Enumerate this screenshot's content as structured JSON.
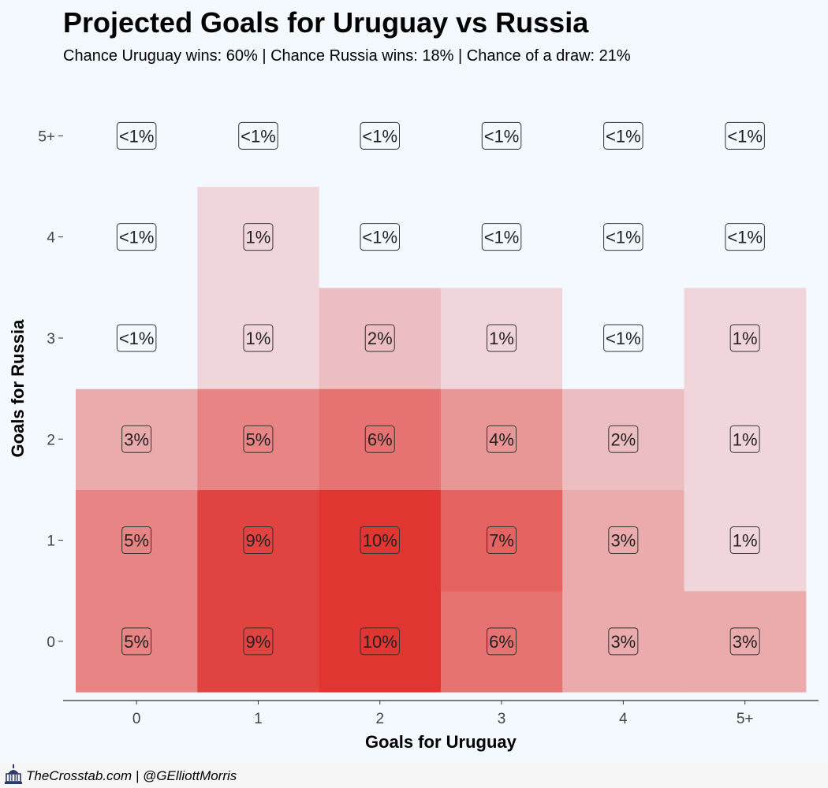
{
  "header": {
    "title": "Projected Goals for Uruguay vs Russia",
    "subtitle": "Chance Uruguay wins: 60% | Chance Russia wins: 18% | Chance of a draw: 21%"
  },
  "footer": {
    "credit": "TheCrosstab.com | @GElliottMorris",
    "logo_icon": "capitol-building-icon"
  },
  "chart_data": {
    "type": "heatmap",
    "xlabel": "Goals for Uruguay",
    "ylabel": "Goals for Russia",
    "x_categories": [
      "0",
      "1",
      "2",
      "3",
      "4",
      "5+"
    ],
    "y_categories": [
      "0",
      "1",
      "2",
      "3",
      "4",
      "5+"
    ],
    "cells": [
      {
        "x": "0",
        "y": "0",
        "value": 5,
        "label": "5%"
      },
      {
        "x": "1",
        "y": "0",
        "value": 9,
        "label": "9%"
      },
      {
        "x": "2",
        "y": "0",
        "value": 10,
        "label": "10%"
      },
      {
        "x": "3",
        "y": "0",
        "value": 6,
        "label": "6%"
      },
      {
        "x": "4",
        "y": "0",
        "value": 3,
        "label": "3%"
      },
      {
        "x": "5+",
        "y": "0",
        "value": 3,
        "label": "3%"
      },
      {
        "x": "0",
        "y": "1",
        "value": 5,
        "label": "5%"
      },
      {
        "x": "1",
        "y": "1",
        "value": 9,
        "label": "9%"
      },
      {
        "x": "2",
        "y": "1",
        "value": 10,
        "label": "10%"
      },
      {
        "x": "3",
        "y": "1",
        "value": 7,
        "label": "7%"
      },
      {
        "x": "4",
        "y": "1",
        "value": 3,
        "label": "3%"
      },
      {
        "x": "5+",
        "y": "1",
        "value": 1,
        "label": "1%"
      },
      {
        "x": "0",
        "y": "2",
        "value": 3,
        "label": "3%"
      },
      {
        "x": "1",
        "y": "2",
        "value": 5,
        "label": "5%"
      },
      {
        "x": "2",
        "y": "2",
        "value": 6,
        "label": "6%"
      },
      {
        "x": "3",
        "y": "2",
        "value": 4,
        "label": "4%"
      },
      {
        "x": "4",
        "y": "2",
        "value": 2,
        "label": "2%"
      },
      {
        "x": "5+",
        "y": "2",
        "value": 1,
        "label": "1%"
      },
      {
        "x": "0",
        "y": "3",
        "value": 0,
        "label": "<1%"
      },
      {
        "x": "1",
        "y": "3",
        "value": 1,
        "label": "1%"
      },
      {
        "x": "2",
        "y": "3",
        "value": 2,
        "label": "2%"
      },
      {
        "x": "3",
        "y": "3",
        "value": 1,
        "label": "1%"
      },
      {
        "x": "4",
        "y": "3",
        "value": 0,
        "label": "<1%"
      },
      {
        "x": "5+",
        "y": "3",
        "value": 1,
        "label": "1%"
      },
      {
        "x": "0",
        "y": "4",
        "value": 0,
        "label": "<1%"
      },
      {
        "x": "1",
        "y": "4",
        "value": 1,
        "label": "1%"
      },
      {
        "x": "2",
        "y": "4",
        "value": 0,
        "label": "<1%"
      },
      {
        "x": "3",
        "y": "4",
        "value": 0,
        "label": "<1%"
      },
      {
        "x": "4",
        "y": "4",
        "value": 0,
        "label": "<1%"
      },
      {
        "x": "5+",
        "y": "4",
        "value": 0,
        "label": "<1%"
      },
      {
        "x": "0",
        "y": "5+",
        "value": 0,
        "label": "<1%"
      },
      {
        "x": "1",
        "y": "5+",
        "value": 0,
        "label": "<1%"
      },
      {
        "x": "2",
        "y": "5+",
        "value": 0,
        "label": "<1%"
      },
      {
        "x": "3",
        "y": "5+",
        "value": 0,
        "label": "<1%"
      },
      {
        "x": "4",
        "y": "5+",
        "value": 0,
        "label": "<1%"
      },
      {
        "x": "5+",
        "y": "5+",
        "value": 0,
        "label": "<1%"
      }
    ],
    "color_low": "#f3f9ff",
    "color_high": "#e03530",
    "background": "#f3f9ff",
    "grid": false,
    "legend": "none"
  }
}
